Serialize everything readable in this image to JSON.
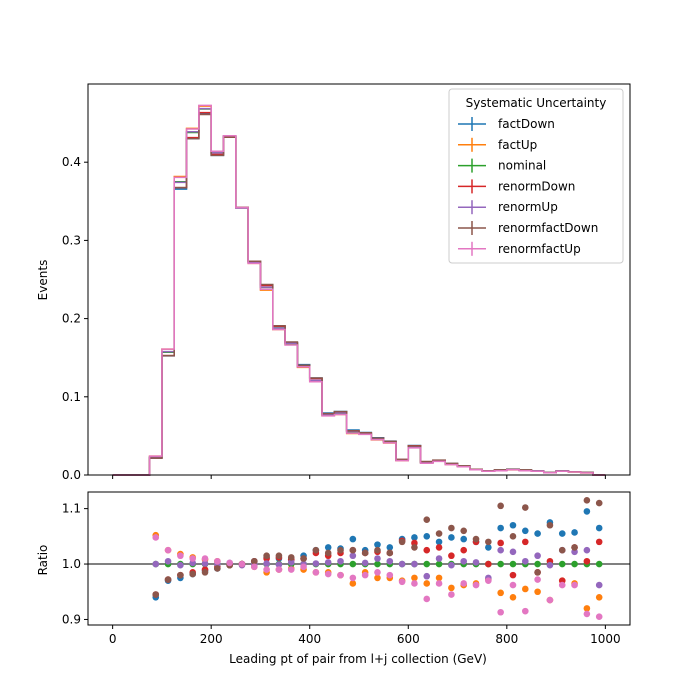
{
  "chart_data": {
    "type": "line",
    "colors": {
      "factDown": "#1f77b4",
      "factUp": "#ff7f0e",
      "nominal": "#2ca02c",
      "renormDown": "#d62728",
      "renormUp": "#9467bd",
      "renormfactDown": "#8c564b",
      "renormfactUp": "#e377c2"
    },
    "legend": {
      "title": "Systematic Uncertainty",
      "entries": [
        "factDown",
        "factUp",
        "nominal",
        "renormDown",
        "renormUp",
        "renormfactDown",
        "renormfactUp"
      ],
      "placement": "top-right"
    },
    "top_panel": {
      "ylabel": "Events",
      "ylim": [
        0,
        0.5
      ],
      "yticks": [
        0.0,
        0.1,
        0.2,
        0.3,
        0.4
      ],
      "ytick_labels": [
        "0.0",
        "0.1",
        "0.2",
        "0.3",
        "0.4"
      ],
      "histogram_type": "step",
      "bin_width": 25,
      "bin_edges_start": 0,
      "nominal_values": [
        0,
        0,
        0,
        0.023,
        0.157,
        0.375,
        0.438,
        0.468,
        0.412,
        0.433,
        0.342,
        0.272,
        0.24,
        0.188,
        0.168,
        0.139,
        0.121,
        0.077,
        0.079,
        0.055,
        0.053,
        0.046,
        0.042,
        0.019,
        0.036,
        0.016,
        0.018,
        0.014,
        0.011,
        0.007,
        0.005,
        0.006,
        0.007,
        0.006,
        0.005,
        0.003,
        0.005,
        0.004,
        0.003,
        0
      ]
    },
    "bottom_panel": {
      "ylabel": "Ratio",
      "ylim": [
        0.89,
        1.13
      ],
      "yticks": [
        0.9,
        1.0,
        1.1
      ],
      "ytick_labels": [
        "0.9",
        "1.0",
        "1.1"
      ],
      "reference_line": 1.0,
      "bin_centers": [
        87.5,
        112.5,
        137.5,
        162.5,
        187.5,
        212.5,
        237.5,
        262.5,
        287.5,
        312.5,
        337.5,
        362.5,
        387.5,
        412.5,
        437.5,
        462.5,
        487.5,
        512.5,
        537.5,
        562.5,
        587.5,
        612.5,
        637.5,
        662.5,
        687.5,
        712.5,
        737.5,
        762.5,
        787.5,
        812.5,
        837.5,
        862.5,
        887.5,
        912.5,
        937.5,
        962.5,
        987.5
      ],
      "series": [
        {
          "name": "factDown",
          "values": [
            0.94,
            0.97,
            0.975,
            0.982,
            0.988,
            0.992,
            0.998,
            1.0,
            1.005,
            1.012,
            1.01,
            1.008,
            1.015,
            1.025,
            1.03,
            1.028,
            1.045,
            1.025,
            1.035,
            1.03,
            1.045,
            1.048,
            1.05,
            1.04,
            1.048,
            1.045,
            1.04,
            1.03,
            1.065,
            1.07,
            1.06,
            1.055,
            1.075,
            1.055,
            1.057,
            1.095,
            1.065
          ]
        },
        {
          "name": "factUp",
          "values": [
            1.052,
            1.025,
            1.018,
            1.012,
            1.008,
            1.005,
            1.0,
            1.0,
            0.995,
            0.985,
            0.99,
            0.992,
            0.99,
            0.985,
            0.985,
            0.98,
            0.965,
            0.985,
            0.975,
            0.975,
            0.97,
            0.975,
            0.965,
            0.975,
            0.957,
            0.962,
            0.965,
            0.972,
            0.948,
            0.94,
            0.955,
            0.95,
            0.935,
            0.97,
            0.965,
            0.92,
            0.94
          ]
        },
        {
          "name": "nominal",
          "values": [
            1.0,
            1.0,
            1.0,
            1.0,
            1.0,
            1.0,
            1.0,
            1.0,
            1.0,
            1.0,
            1.0,
            1.0,
            1.0,
            1.0,
            1.0,
            1.0,
            1.0,
            1.0,
            1.0,
            1.0,
            1.0,
            1.0,
            1.0,
            1.0,
            1.0,
            1.0,
            1.0,
            1.0,
            1.0,
            1.0,
            1.0,
            1.0,
            1.0,
            1.0,
            1.0,
            1.0,
            1.0
          ]
        },
        {
          "name": "renormDown",
          "values": [
            0.945,
            0.972,
            0.98,
            0.985,
            0.99,
            0.995,
            0.998,
            1.0,
            1.005,
            1.01,
            1.012,
            1.008,
            1.01,
            1.02,
            1.015,
            1.02,
            1.025,
            1.02,
            1.022,
            1.02,
            1.042,
            1.038,
            1.025,
            1.03,
            1.015,
            1.025,
            1.04,
            1.0,
            1.038,
            0.98,
            1.04,
            0.985,
            1.005,
            0.97,
            1.03,
            1.005,
            1.04
          ]
        },
        {
          "name": "renormUp",
          "values": [
            1.0,
            1.005,
            0.998,
            1.002,
            1.001,
            1.0,
            1.002,
            0.998,
            1.0,
            1.001,
            0.999,
            1.003,
            1.0,
            1.001,
            1.003,
            1.005,
            1.015,
            1.002,
            1.01,
            1.005,
            1.0,
            1.0,
            0.978,
            1.01,
            0.998,
            1.005,
            1.003,
            0.975,
            1.025,
            1.022,
            1.005,
            1.015,
            0.998,
            1.025,
            1.022,
            1.025,
            0.962
          ]
        },
        {
          "name": "renormfactDown",
          "values": [
            0.945,
            0.972,
            0.98,
            0.982,
            0.985,
            0.992,
            0.998,
            1.0,
            1.005,
            1.015,
            1.015,
            1.012,
            1.01,
            1.025,
            1.02,
            1.025,
            1.025,
            1.02,
            1.025,
            1.02,
            1.04,
            1.03,
            1.08,
            1.055,
            1.065,
            1.06,
            1.045,
            1.04,
            1.105,
            1.05,
            1.102,
            0.985,
            1.07,
            1.025,
            1.03,
            1.115,
            1.11
          ]
        },
        {
          "name": "renormfactUp",
          "values": [
            1.048,
            1.025,
            1.015,
            1.01,
            1.01,
            1.005,
            1.002,
            1.0,
            0.995,
            0.99,
            0.99,
            0.99,
            0.995,
            0.985,
            0.982,
            0.98,
            0.975,
            0.98,
            0.985,
            0.98,
            0.968,
            0.965,
            0.937,
            0.965,
            0.945,
            0.965,
            0.962,
            0.97,
            0.913,
            0.962,
            0.915,
            0.972,
            0.935,
            0.962,
            0.962,
            0.91,
            0.905
          ]
        }
      ]
    },
    "xlabel": "Leading pt of pair from l+j collection (GeV)",
    "xlim": [
      -50,
      1050
    ],
    "xticks": [
      0,
      200,
      400,
      600,
      800,
      1000
    ],
    "xtick_labels": [
      "0",
      "200",
      "400",
      "600",
      "800",
      "1000"
    ],
    "grid": false
  }
}
